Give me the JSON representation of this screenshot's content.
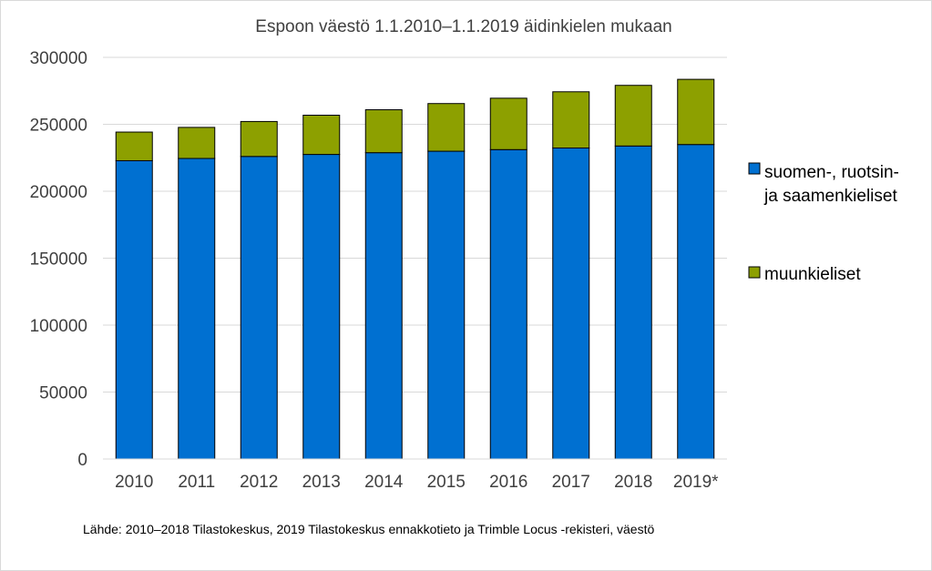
{
  "chart_data": {
    "type": "bar",
    "stacked": true,
    "title": "Espoon väestö 1.1.2010–1.1.2019 äidinkielen mukaan",
    "categories": [
      "2010",
      "2011",
      "2012",
      "2013",
      "2014",
      "2015",
      "2016",
      "2017",
      "2018",
      "2019*"
    ],
    "series": [
      {
        "name": "suomen-, ruotsin- ja saamenkieliset",
        "name_lines": [
          "suomen-, ruotsin-",
          "ja saamenkieliset"
        ],
        "color": "#0070d1",
        "values": [
          222800,
          224500,
          226000,
          227500,
          228800,
          229900,
          231100,
          232300,
          233800,
          234900
        ]
      },
      {
        "name": "muunkieliset",
        "name_lines": [
          "muunkieliset"
        ],
        "color": "#8da000",
        "values": [
          21400,
          23200,
          26100,
          29300,
          32100,
          35600,
          38400,
          42000,
          45300,
          48700
        ]
      }
    ],
    "ylim": [
      0,
      300000
    ],
    "yticks": [
      0,
      50000,
      100000,
      150000,
      200000,
      250000,
      300000
    ],
    "grid": true,
    "legend_position": "right",
    "source_note": "Lähde: 2010–2018 Tilastokeskus, 2019 Tilastokeskus ennakkotieto ja Trimble Locus -rekisteri, väestö"
  }
}
